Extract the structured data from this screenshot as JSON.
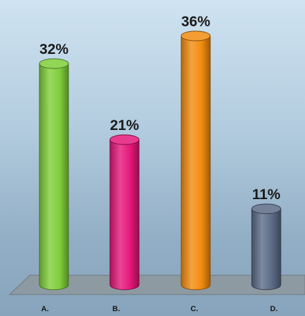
{
  "chart_data": {
    "type": "bar",
    "categories": [
      "A.",
      "B.",
      "C.",
      "D."
    ],
    "values": [
      32,
      21,
      36,
      11
    ],
    "value_labels": [
      "32%",
      "21%",
      "36%",
      "11%"
    ],
    "ylim": [
      0,
      36
    ],
    "colors": [
      "#7fcf3a",
      "#e5177a",
      "#f28c0f",
      "#5b6b86"
    ],
    "grid": false,
    "title": "",
    "xlabel": "",
    "ylabel": ""
  }
}
